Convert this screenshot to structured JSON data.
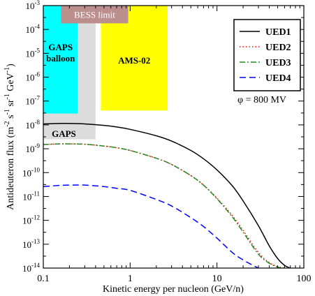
{
  "chart_data": {
    "type": "line",
    "x_scale": "log",
    "y_scale": "log",
    "xlim": [
      0.1,
      100
    ],
    "ylim": [
      1e-14,
      0.001
    ],
    "xlabel": "Kinetic energy per nucleon (GeV/n)",
    "ylabel_parts": [
      "Antideuteron flux (m",
      "-2",
      " s",
      "-1",
      " sr",
      "-1",
      " GeV",
      "-1",
      ")"
    ],
    "x_tick_labels": [
      {
        "value": 0.1,
        "label": "0.1"
      },
      {
        "value": 1,
        "label": "1"
      },
      {
        "value": 10,
        "label": "10"
      },
      {
        "value": 100,
        "label": "100"
      }
    ],
    "y_tick_labels": [
      {
        "value": 1e-14,
        "mant": "10",
        "exp": "-14"
      },
      {
        "value": 1e-13,
        "mant": "10",
        "exp": "-13"
      },
      {
        "value": 1e-12,
        "mant": "10",
        "exp": "-12"
      },
      {
        "value": 1e-11,
        "mant": "10",
        "exp": "-11"
      },
      {
        "value": 1e-10,
        "mant": "10",
        "exp": "-10"
      },
      {
        "value": 1e-09,
        "mant": "10",
        "exp": "-9"
      },
      {
        "value": 1e-08,
        "mant": "10",
        "exp": "-8"
      },
      {
        "value": 1e-07,
        "mant": "10",
        "exp": "-7"
      },
      {
        "value": 1e-06,
        "mant": "10",
        "exp": "-6"
      },
      {
        "value": 1e-05,
        "mant": "10",
        "exp": "-5"
      },
      {
        "value": 0.0001,
        "mant": "10",
        "exp": "-4"
      },
      {
        "value": 0.001,
        "mant": "10",
        "exp": "-3"
      }
    ],
    "regions": [
      {
        "name": "GAPS",
        "label": "GAPS",
        "x": [
          0.1,
          0.4
        ],
        "y": [
          2.5e-09,
          0.001
        ],
        "color": "#dcdcdc"
      },
      {
        "name": "GAPS balloon",
        "label_lines": [
          "GAPS",
          "balloon"
        ],
        "x": [
          0.1,
          0.25
        ],
        "y": [
          3e-08,
          0.001
        ],
        "color": "#00ffff"
      },
      {
        "name": "AMS-02",
        "label": "AMS-02",
        "x": [
          0.46,
          2.7
        ],
        "y": [
          4e-08,
          0.001
        ],
        "color": "#ffff00"
      },
      {
        "name": "BESS limit",
        "label": "BESS limit",
        "x": [
          0.16,
          0.95
        ],
        "y": [
          0.00018,
          0.001
        ],
        "color": "#bc8f8f"
      }
    ],
    "annotation": "φ = 800 MV",
    "legend_position": "top-right",
    "series": [
      {
        "name": "UED1",
        "color": "#000000",
        "dash": "solid",
        "x": [
          0.1,
          0.15,
          0.2,
          0.3,
          0.5,
          0.7,
          1,
          2,
          3,
          5,
          7,
          10,
          15,
          20,
          30,
          40,
          50,
          60,
          70
        ],
        "y": [
          1.1e-08,
          1.15e-08,
          1.15e-08,
          1.1e-08,
          9.5e-09,
          8.2e-09,
          6.5e-09,
          3.5e-09,
          2.1e-09,
          8.5e-10,
          3.8e-10,
          1.3e-10,
          2.8e-11,
          6.5e-12,
          6e-13,
          8.5e-14,
          2.5e-14,
          1.3e-14,
          1e-14
        ]
      },
      {
        "name": "UED2",
        "color": "#ff0000",
        "dash": "dotted",
        "x": [
          0.1,
          0.15,
          0.2,
          0.3,
          0.5,
          0.7,
          1,
          2,
          3,
          5,
          7,
          10,
          15,
          20,
          30,
          40,
          50,
          60
        ],
        "y": [
          1.5e-09,
          1.6e-09,
          1.6e-09,
          1.55e-09,
          1.3e-09,
          1.1e-09,
          8.5e-10,
          4e-10,
          2.2e-10,
          7.5e-11,
          3e-11,
          8.5e-12,
          1.6e-12,
          3.8e-13,
          4.5e-14,
          1.7e-14,
          1.15e-14,
          1e-14
        ]
      },
      {
        "name": "UED3",
        "color": "#228b22",
        "dash": "dashdot",
        "x": [
          0.1,
          0.15,
          0.2,
          0.3,
          0.5,
          0.7,
          1,
          2,
          3,
          5,
          7,
          10,
          15,
          20,
          30,
          40,
          50,
          55
        ],
        "y": [
          1.5e-09,
          1.6e-09,
          1.6e-09,
          1.55e-09,
          1.3e-09,
          1.1e-09,
          8.5e-10,
          4e-10,
          2.2e-10,
          7.5e-11,
          3e-11,
          8e-12,
          1.4e-12,
          3.2e-13,
          3.8e-14,
          1.6e-14,
          1.1e-14,
          1e-14
        ]
      },
      {
        "name": "UED4",
        "color": "#0000ff",
        "dash": "dashed",
        "x": [
          0.1,
          0.15,
          0.2,
          0.3,
          0.5,
          0.7,
          1,
          2,
          3,
          5,
          7,
          10,
          15,
          20,
          25,
          30
        ],
        "y": [
          2.6e-11,
          2.9e-11,
          3e-11,
          3e-11,
          2.6e-11,
          2.2e-11,
          1.8e-11,
          7.5e-12,
          4e-12,
          1.3e-12,
          5.5e-13,
          1.8e-13,
          4.5e-14,
          2.2e-14,
          1.4e-14,
          1e-14
        ]
      }
    ]
  }
}
